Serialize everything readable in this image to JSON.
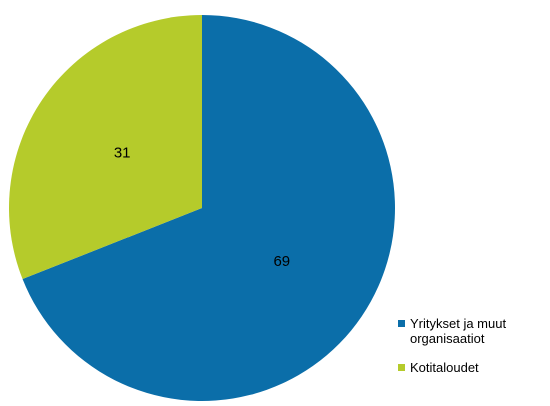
{
  "chart_data": {
    "type": "pie",
    "series": [
      {
        "name": "Yritykset ja muut organisaatiot",
        "color": "#0b6ea9",
        "values": [
          69
        ]
      },
      {
        "name": "Kotitaloudet",
        "color": "#b5cb2b",
        "values": [
          31
        ]
      }
    ]
  }
}
